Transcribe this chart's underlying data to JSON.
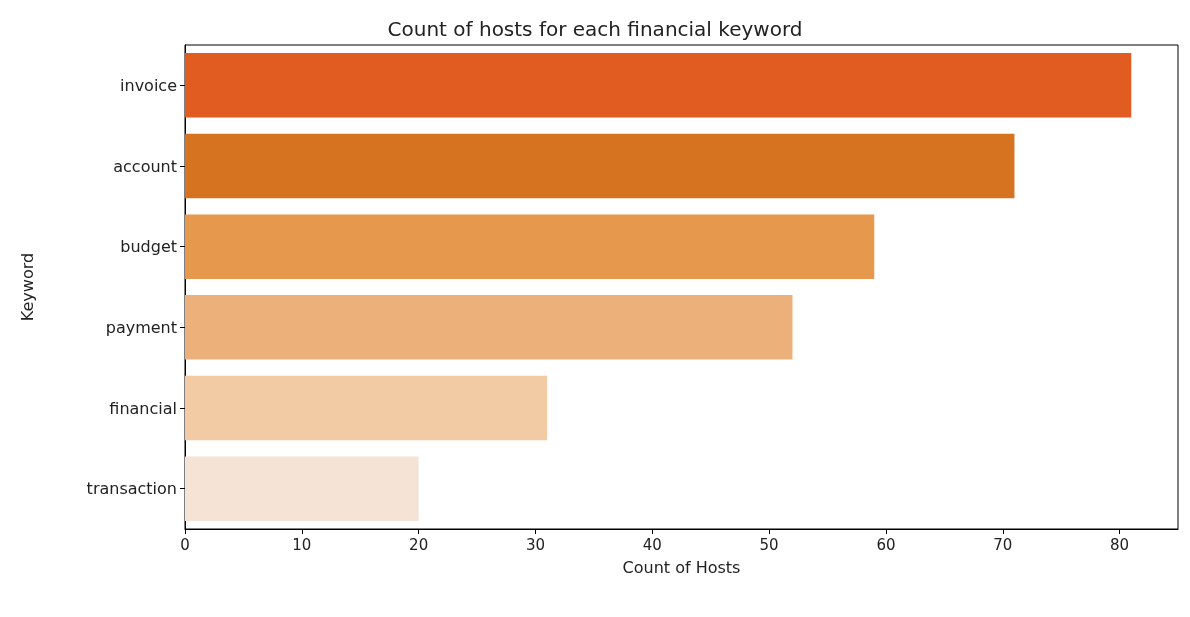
{
  "chart_data": {
    "type": "bar",
    "orientation": "horizontal",
    "title": "Count of hosts for each financial keyword",
    "xlabel": "Count of Hosts",
    "ylabel": "Keyword",
    "categories": [
      "invoice",
      "account",
      "budget",
      "payment",
      "financial",
      "transaction"
    ],
    "values": [
      81,
      71,
      59,
      52,
      31,
      20
    ],
    "colors": [
      "#e05c21",
      "#d67320",
      "#e6984d",
      "#ecb17b",
      "#f2cba5",
      "#f5e4d6"
    ],
    "xlim": [
      0,
      85
    ],
    "xticks": [
      0,
      10,
      20,
      30,
      40,
      50,
      60,
      70,
      80
    ],
    "grid": false
  }
}
